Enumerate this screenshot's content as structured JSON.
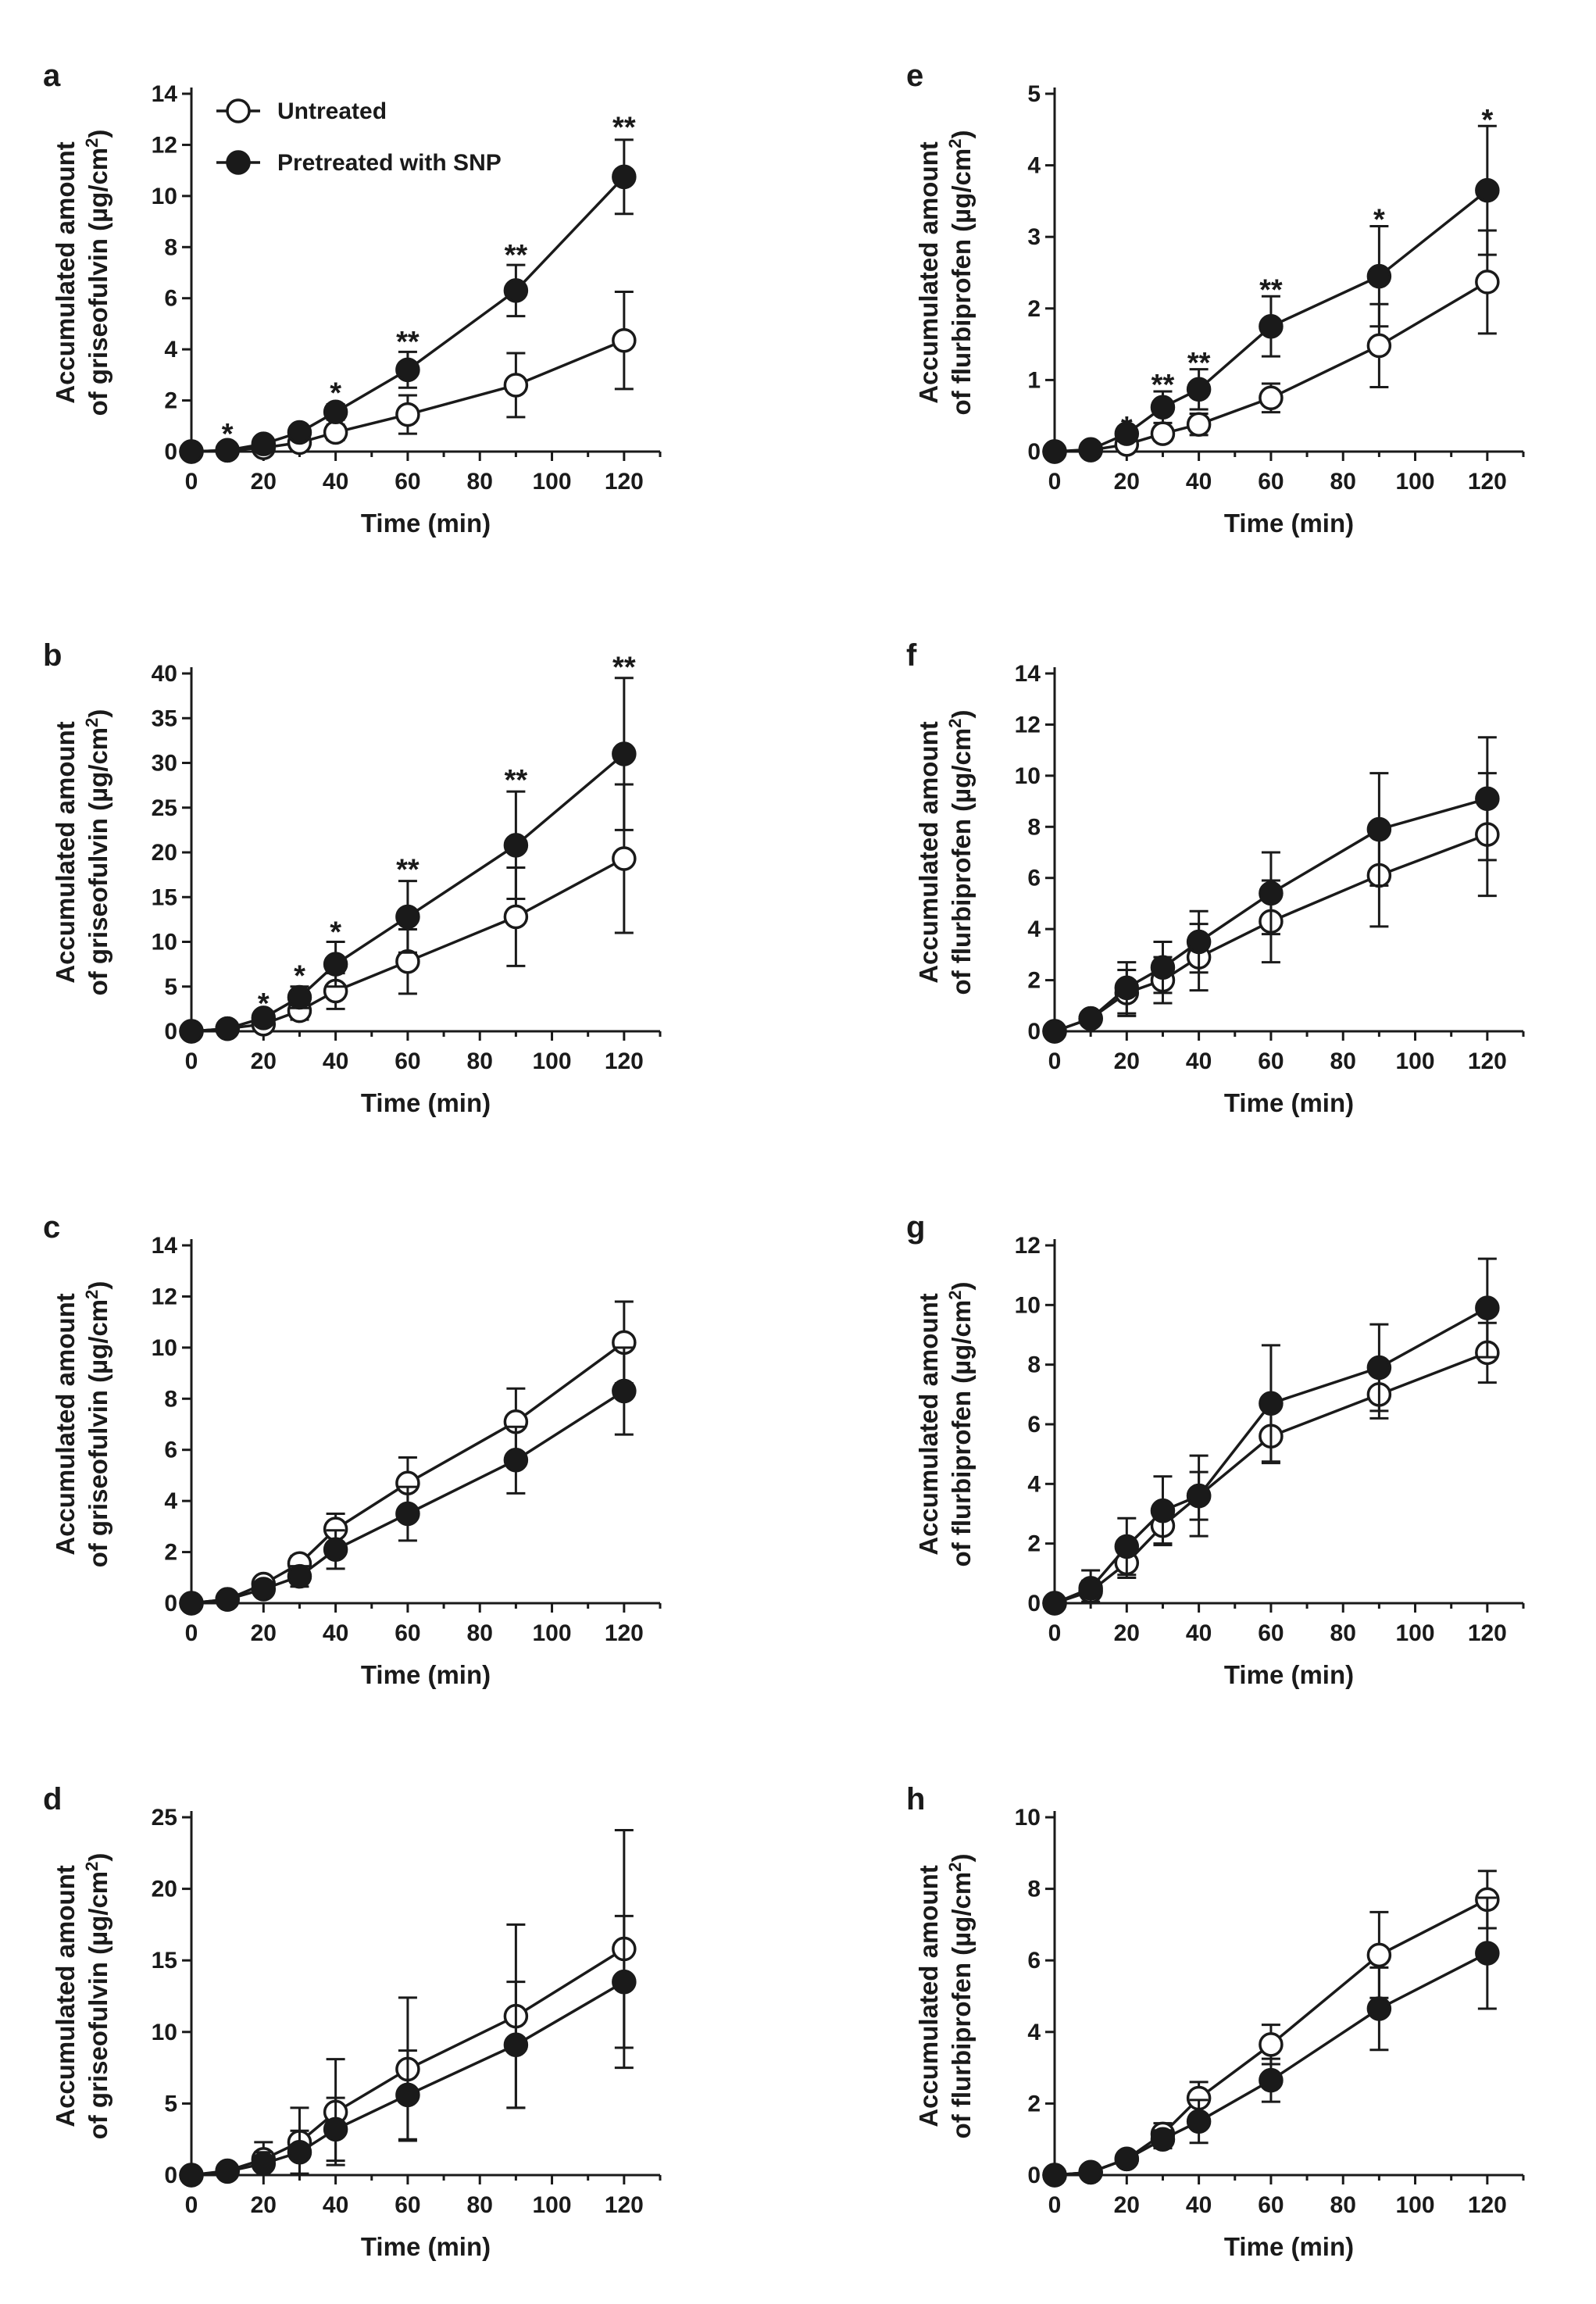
{
  "legend": {
    "untreated": "Untreated",
    "pretreated": "Pretreated with SNP"
  },
  "colors": {
    "ink": "#1a1a1a",
    "open_fill": "#ffffff",
    "closed_fill": "#1a1a1a"
  },
  "chart_data": [
    {
      "id": "a",
      "type": "line",
      "drug": "griseofulvin",
      "xlabel": "Time (min)",
      "ylabel_line1": "Accumulated amount",
      "ylabel_line2_prefix": "of griseofulvin (µg/cm",
      "ylabel_sup": "2",
      "ylabel_suffix": ")",
      "x": [
        0,
        10,
        20,
        30,
        40,
        60,
        90,
        120
      ],
      "xticks": [
        0,
        20,
        40,
        60,
        80,
        100,
        120
      ],
      "xlim": [
        0,
        130
      ],
      "ylim": [
        0,
        14
      ],
      "yticks": [
        0,
        2,
        4,
        6,
        8,
        10,
        12,
        14
      ],
      "show_legend": true,
      "series": [
        {
          "name": "Untreated",
          "marker": "open",
          "values": [
            0,
            0.05,
            0.15,
            0.35,
            0.75,
            1.45,
            2.6,
            4.35
          ],
          "errors": [
            0,
            0.03,
            0.1,
            0.2,
            0.3,
            0.75,
            1.25,
            1.9
          ]
        },
        {
          "name": "Pretreated with SNP",
          "marker": "filled",
          "values": [
            0,
            0.05,
            0.3,
            0.75,
            1.55,
            3.2,
            6.3,
            10.75
          ],
          "errors": [
            0,
            0.03,
            0.1,
            0.2,
            0.3,
            0.7,
            1.0,
            1.45
          ]
        }
      ],
      "annotations": [
        {
          "x": 10,
          "y": 0.8,
          "text": "*"
        },
        {
          "x": 40,
          "y": 2.4,
          "text": "*"
        },
        {
          "x": 60,
          "y": 4.4,
          "text": "**"
        },
        {
          "x": 90,
          "y": 7.8,
          "text": "**"
        },
        {
          "x": 120,
          "y": 12.8,
          "text": "**"
        }
      ]
    },
    {
      "id": "b",
      "type": "line",
      "drug": "griseofulvin",
      "xlabel": "Time (min)",
      "ylabel_line1": "Accumulated amount",
      "ylabel_line2_prefix": "of griseofulvin (µg/cm",
      "ylabel_sup": "2",
      "ylabel_suffix": ")",
      "x": [
        0,
        10,
        20,
        30,
        40,
        60,
        90,
        120
      ],
      "xticks": [
        0,
        20,
        40,
        60,
        80,
        100,
        120
      ],
      "xlim": [
        0,
        130
      ],
      "ylim": [
        0,
        40
      ],
      "yticks": [
        0,
        5,
        10,
        15,
        20,
        25,
        30,
        35,
        40
      ],
      "show_legend": false,
      "series": [
        {
          "name": "Untreated",
          "marker": "open",
          "values": [
            0,
            0.3,
            0.8,
            2.3,
            4.5,
            7.8,
            12.8,
            19.3
          ],
          "errors": [
            0,
            0.2,
            0.5,
            1.0,
            2.0,
            3.6,
            5.5,
            8.3
          ]
        },
        {
          "name": "Pretreated with SNP",
          "marker": "filled",
          "values": [
            0,
            0.3,
            1.5,
            3.8,
            7.5,
            12.8,
            20.8,
            31.0
          ],
          "errors": [
            0,
            0.2,
            0.6,
            1.2,
            2.5,
            4.0,
            6.0,
            8.5
          ]
        }
      ],
      "annotations": [
        {
          "x": 20,
          "y": 3.4,
          "text": "*"
        },
        {
          "x": 30,
          "y": 6.5,
          "text": "*"
        },
        {
          "x": 40,
          "y": 11.4,
          "text": "*"
        },
        {
          "x": 60,
          "y": 18.4,
          "text": "**"
        },
        {
          "x": 90,
          "y": 28.4,
          "text": "**"
        },
        {
          "x": 120,
          "y": 41.0,
          "text": "**"
        }
      ]
    },
    {
      "id": "c",
      "type": "line",
      "drug": "griseofulvin",
      "xlabel": "Time (min)",
      "ylabel_line1": "Accumulated amount",
      "ylabel_line2_prefix": "of griseofulvin (µg/cm",
      "ylabel_sup": "2",
      "ylabel_suffix": ")",
      "x": [
        0,
        10,
        20,
        30,
        40,
        60,
        90,
        120
      ],
      "xticks": [
        0,
        20,
        40,
        60,
        80,
        100,
        120
      ],
      "xlim": [
        0,
        130
      ],
      "ylim": [
        0,
        14
      ],
      "yticks": [
        0,
        2,
        4,
        6,
        8,
        10,
        12,
        14
      ],
      "show_legend": false,
      "series": [
        {
          "name": "Untreated",
          "marker": "open",
          "values": [
            0,
            0.15,
            0.75,
            1.55,
            2.9,
            4.7,
            7.1,
            10.2
          ],
          "errors": [
            0,
            0.1,
            0.2,
            0.3,
            0.6,
            1.0,
            1.3,
            1.6
          ]
        },
        {
          "name": "Pretreated with SNP",
          "marker": "filled",
          "values": [
            0,
            0.15,
            0.55,
            1.05,
            2.1,
            3.5,
            5.6,
            8.3
          ],
          "errors": [
            0,
            0.1,
            0.25,
            0.4,
            0.75,
            1.05,
            1.3,
            1.7
          ]
        }
      ],
      "annotations": []
    },
    {
      "id": "d",
      "type": "line",
      "drug": "griseofulvin",
      "xlabel": "Time (min)",
      "ylabel_line1": "Accumulated amount",
      "ylabel_line2_prefix": "of griseofulvin (µg/cm",
      "ylabel_sup": "2",
      "ylabel_suffix": ")",
      "x": [
        0,
        10,
        20,
        30,
        40,
        60,
        90,
        120
      ],
      "xticks": [
        0,
        20,
        40,
        60,
        80,
        100,
        120
      ],
      "xlim": [
        0,
        130
      ],
      "ylim": [
        0,
        25
      ],
      "yticks": [
        0,
        5,
        10,
        15,
        20,
        25
      ],
      "show_legend": false,
      "series": [
        {
          "name": "Untreated",
          "marker": "open",
          "values": [
            0,
            0.3,
            1.1,
            2.3,
            4.4,
            7.4,
            11.1,
            15.8
          ],
          "errors": [
            0,
            0.2,
            1.2,
            2.4,
            3.7,
            5.0,
            6.4,
            8.3
          ]
        },
        {
          "name": "Pretreated with SNP",
          "marker": "filled",
          "values": [
            0,
            0.25,
            0.8,
            1.6,
            3.2,
            5.6,
            9.1,
            13.5
          ],
          "errors": [
            0,
            0.2,
            0.8,
            1.5,
            2.2,
            3.1,
            4.4,
            4.6
          ]
        }
      ],
      "annotations": []
    },
    {
      "id": "e",
      "type": "line",
      "drug": "flurbiprofen",
      "xlabel": "Time (min)",
      "ylabel_line1": "Accumulated amount",
      "ylabel_line2_prefix": "of flurbiprofen (µg/cm",
      "ylabel_sup": "2",
      "ylabel_suffix": ")",
      "x": [
        0,
        10,
        20,
        30,
        40,
        60,
        90,
        120
      ],
      "xticks": [
        0,
        20,
        40,
        60,
        80,
        100,
        120
      ],
      "xlim": [
        0,
        130
      ],
      "ylim": [
        0,
        5
      ],
      "yticks": [
        0,
        1,
        2,
        3,
        4,
        5
      ],
      "show_legend": false,
      "series": [
        {
          "name": "Untreated",
          "marker": "open",
          "values": [
            0,
            0.02,
            0.1,
            0.25,
            0.38,
            0.75,
            1.48,
            2.37
          ],
          "errors": [
            0,
            0.02,
            0.05,
            0.1,
            0.15,
            0.2,
            0.58,
            0.72
          ]
        },
        {
          "name": "Pretreated with SNP",
          "marker": "filled",
          "values": [
            0,
            0.03,
            0.25,
            0.62,
            0.87,
            1.75,
            2.45,
            3.65
          ],
          "errors": [
            0,
            0.02,
            0.1,
            0.22,
            0.28,
            0.42,
            0.7,
            0.9
          ]
        }
      ],
      "annotations": [
        {
          "x": 20,
          "y": 0.38,
          "text": "*"
        },
        {
          "x": 30,
          "y": 0.97,
          "text": "**"
        },
        {
          "x": 40,
          "y": 1.28,
          "text": "**"
        },
        {
          "x": 60,
          "y": 2.3,
          "text": "**"
        },
        {
          "x": 90,
          "y": 3.28,
          "text": "*"
        },
        {
          "x": 120,
          "y": 4.67,
          "text": "*"
        }
      ]
    },
    {
      "id": "f",
      "type": "line",
      "drug": "flurbiprofen",
      "xlabel": "Time (min)",
      "ylabel_line1": "Accumulated amount",
      "ylabel_line2_prefix": "of flurbiprofen (µg/cm",
      "ylabel_sup": "2",
      "ylabel_suffix": ")",
      "x": [
        0,
        10,
        20,
        30,
        40,
        60,
        90,
        120
      ],
      "xticks": [
        0,
        20,
        40,
        60,
        80,
        100,
        120
      ],
      "xlim": [
        0,
        130
      ],
      "ylim": [
        0,
        14
      ],
      "yticks": [
        0,
        2,
        4,
        6,
        8,
        10,
        12,
        14
      ],
      "show_legend": false,
      "series": [
        {
          "name": "Untreated",
          "marker": "open",
          "values": [
            0,
            0.5,
            1.5,
            2.0,
            2.9,
            4.3,
            6.1,
            7.7
          ],
          "errors": [
            0,
            0.2,
            0.9,
            0.9,
            1.3,
            1.6,
            2.0,
            2.4
          ]
        },
        {
          "name": "Pretreated with SNP",
          "marker": "filled",
          "values": [
            0,
            0.5,
            1.7,
            2.5,
            3.5,
            5.4,
            7.9,
            9.1
          ],
          "errors": [
            0,
            0.2,
            1.0,
            1.0,
            1.2,
            1.6,
            2.2,
            2.4
          ]
        }
      ],
      "annotations": []
    },
    {
      "id": "g",
      "type": "line",
      "drug": "flurbiprofen",
      "xlabel": "Time (min)",
      "ylabel_line1": "Accumulated amount",
      "ylabel_line2_prefix": "of flurbiprofen (µg/cm",
      "ylabel_sup": "2",
      "ylabel_suffix": ")",
      "x": [
        0,
        10,
        20,
        30,
        40,
        60,
        90,
        120
      ],
      "xticks": [
        0,
        20,
        40,
        60,
        80,
        100,
        120
      ],
      "xlim": [
        0,
        130
      ],
      "ylim": [
        0,
        12
      ],
      "yticks": [
        0,
        2,
        4,
        6,
        8,
        10,
        12
      ],
      "show_legend": false,
      "series": [
        {
          "name": "Untreated",
          "marker": "open",
          "values": [
            0,
            0.4,
            1.35,
            2.6,
            3.6,
            5.6,
            7.0,
            8.4
          ],
          "errors": [
            0,
            0.35,
            0.5,
            0.6,
            0.8,
            0.9,
            0.8,
            1.0
          ]
        },
        {
          "name": "Pretreated with SNP",
          "marker": "filled",
          "values": [
            0,
            0.5,
            1.9,
            3.1,
            3.6,
            6.7,
            7.9,
            9.9
          ],
          "errors": [
            0,
            0.6,
            0.95,
            1.15,
            1.35,
            1.95,
            1.45,
            1.65
          ]
        }
      ],
      "annotations": []
    },
    {
      "id": "h",
      "type": "line",
      "drug": "flurbiprofen",
      "xlabel": "Time (min)",
      "ylabel_line1": "Accumulated amount",
      "ylabel_line2_prefix": "of flurbiprofen (µg/cm",
      "ylabel_sup": "2",
      "ylabel_suffix": ")",
      "x": [
        0,
        10,
        20,
        30,
        40,
        60,
        90,
        120
      ],
      "xticks": [
        0,
        20,
        40,
        60,
        80,
        100,
        120
      ],
      "xlim": [
        0,
        130
      ],
      "ylim": [
        0,
        10
      ],
      "yticks": [
        0,
        2,
        4,
        6,
        8,
        10
      ],
      "show_legend": false,
      "series": [
        {
          "name": "Untreated",
          "marker": "open",
          "values": [
            0,
            0.08,
            0.45,
            1.15,
            2.15,
            3.65,
            6.15,
            7.7
          ],
          "errors": [
            0,
            0.05,
            0.1,
            0.3,
            0.45,
            0.55,
            1.2,
            0.8
          ]
        },
        {
          "name": "Pretreated with SNP",
          "marker": "filled",
          "values": [
            0,
            0.08,
            0.45,
            1.0,
            1.5,
            2.65,
            4.65,
            6.2
          ],
          "errors": [
            0,
            0.05,
            0.1,
            0.25,
            0.6,
            0.6,
            1.15,
            1.55
          ]
        }
      ],
      "annotations": []
    }
  ]
}
